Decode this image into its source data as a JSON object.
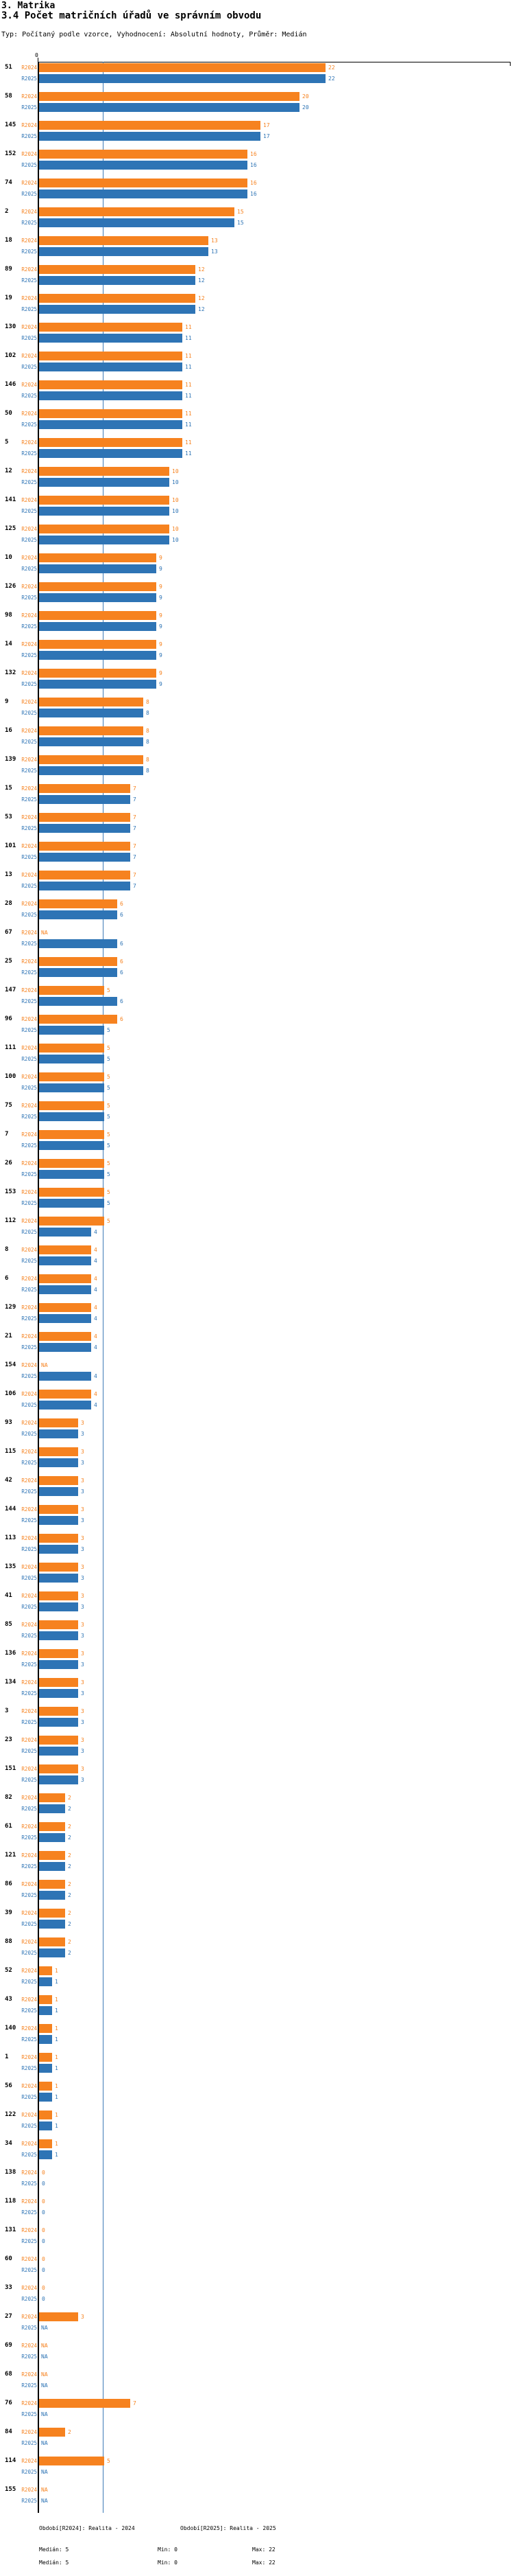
{
  "title": "3. Matrika",
  "subtitle": "3.4 Počet matričních úřadů ve správním obvodu",
  "type_line": "Typ: Počítaný podle vzorce, Vyhodnocení: Absolutní hodnoty, Průměr: Medián",
  "colors": {
    "r2024": "#f6821f",
    "r2025": "#2e74b5",
    "median_line": "#3d7ab5",
    "axis": "#000000"
  },
  "chart_data": {
    "type": "bar",
    "orientation": "horizontal",
    "x_axis": {
      "tick_labels": [
        "0"
      ],
      "min": 0,
      "max": 22
    },
    "median_line_value": 5,
    "na_label": "NA",
    "legend_position": "bottom",
    "grid": false,
    "categories": [
      "51",
      "58",
      "145",
      "152",
      "74",
      "2",
      "18",
      "89",
      "19",
      "130",
      "102",
      "146",
      "50",
      "5",
      "12",
      "141",
      "125",
      "10",
      "126",
      "98",
      "14",
      "132",
      "9",
      "16",
      "139",
      "15",
      "53",
      "101",
      "13",
      "28",
      "67",
      "25",
      "147",
      "96",
      "111",
      "100",
      "75",
      "7",
      "26",
      "153",
      "112",
      "8",
      "6",
      "129",
      "21",
      "154",
      "106",
      "93",
      "115",
      "42",
      "144",
      "113",
      "135",
      "41",
      "85",
      "136",
      "134",
      "3",
      "23",
      "151",
      "82",
      "61",
      "121",
      "86",
      "39",
      "88",
      "52",
      "43",
      "140",
      "1",
      "56",
      "122",
      "34",
      "138",
      "118",
      "131",
      "60",
      "33",
      "27",
      "69",
      "68",
      "76",
      "84",
      "114",
      "155"
    ],
    "series": [
      {
        "name": "R2024",
        "values": [
          22,
          20,
          17,
          16,
          16,
          15,
          13,
          12,
          12,
          11,
          11,
          11,
          11,
          11,
          10,
          10,
          10,
          9,
          9,
          9,
          9,
          9,
          8,
          8,
          8,
          7,
          7,
          7,
          7,
          6,
          null,
          6,
          5,
          6,
          5,
          5,
          5,
          5,
          5,
          5,
          5,
          4,
          4,
          4,
          4,
          null,
          4,
          3,
          3,
          3,
          3,
          3,
          3,
          3,
          3,
          3,
          3,
          3,
          3,
          3,
          2,
          2,
          2,
          2,
          2,
          2,
          1,
          1,
          1,
          1,
          1,
          1,
          1,
          0,
          0,
          0,
          0,
          0,
          3,
          null,
          null,
          7,
          2,
          5,
          null
        ]
      },
      {
        "name": "R2025",
        "values": [
          22,
          20,
          17,
          16,
          16,
          15,
          13,
          12,
          12,
          11,
          11,
          11,
          11,
          11,
          10,
          10,
          10,
          9,
          9,
          9,
          9,
          9,
          8,
          8,
          8,
          7,
          7,
          7,
          7,
          6,
          6,
          6,
          6,
          5,
          5,
          5,
          5,
          5,
          5,
          5,
          4,
          4,
          4,
          4,
          4,
          4,
          4,
          3,
          3,
          3,
          3,
          3,
          3,
          3,
          3,
          3,
          3,
          3,
          3,
          3,
          2,
          2,
          2,
          2,
          2,
          2,
          1,
          1,
          1,
          1,
          1,
          1,
          1,
          0,
          0,
          0,
          0,
          0,
          null,
          null,
          null,
          null,
          null,
          null,
          null
        ]
      }
    ]
  },
  "legend": {
    "r2024_label": "Období[R2024]: Realita - 2024",
    "r2025_label": "Období[R2025]: Realita - 2025",
    "r2024_stats": {
      "median": "Medián: 5",
      "min": "Min: 0",
      "max": "Max: 22"
    },
    "r2025_stats": {
      "median": "Medián: 5",
      "min": "Min: 0",
      "max": "Max: 22"
    }
  }
}
